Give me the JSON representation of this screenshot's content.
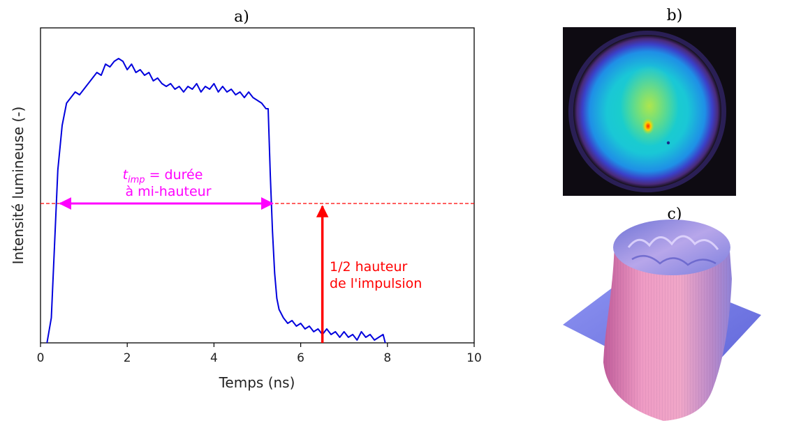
{
  "panels": {
    "a": "a)",
    "b": "b)",
    "c": "c)"
  },
  "chart_data": {
    "type": "line",
    "xlabel": "Temps (ns)",
    "ylabel": "Intensité lumineuse (-)",
    "xlim": [
      0,
      10
    ],
    "ylim": [
      0,
      1.13
    ],
    "xticks": [
      "0",
      "2",
      "4",
      "6",
      "8",
      "10"
    ],
    "yticks_shown": false,
    "grid": false,
    "series": [
      {
        "color": "#0000dd",
        "x": [
          0.15,
          0.25,
          0.32,
          0.4,
          0.5,
          0.6,
          0.7,
          0.8,
          0.9,
          1.0,
          1.1,
          1.2,
          1.3,
          1.4,
          1.5,
          1.6,
          1.7,
          1.8,
          1.9,
          2.0,
          2.1,
          2.2,
          2.3,
          2.4,
          2.5,
          2.6,
          2.7,
          2.8,
          2.9,
          3.0,
          3.1,
          3.2,
          3.3,
          3.4,
          3.5,
          3.6,
          3.7,
          3.8,
          3.9,
          4.0,
          4.1,
          4.2,
          4.3,
          4.4,
          4.5,
          4.6,
          4.7,
          4.8,
          4.9,
          5.0,
          5.1,
          5.2,
          5.25,
          5.3,
          5.35,
          5.4,
          5.45,
          5.5,
          5.6,
          5.7,
          5.8,
          5.9,
          6.0,
          6.1,
          6.2,
          6.3,
          6.4,
          6.5,
          6.6,
          6.7,
          6.8,
          6.9,
          7.0,
          7.1,
          7.2,
          7.3,
          7.4,
          7.5,
          7.6,
          7.7,
          7.8,
          7.9,
          7.95
        ],
        "y": [
          0.0,
          0.09,
          0.34,
          0.62,
          0.78,
          0.86,
          0.88,
          0.9,
          0.89,
          0.91,
          0.93,
          0.95,
          0.97,
          0.96,
          1.0,
          0.99,
          1.01,
          1.02,
          1.01,
          0.98,
          1.0,
          0.97,
          0.98,
          0.96,
          0.97,
          0.94,
          0.95,
          0.93,
          0.92,
          0.93,
          0.91,
          0.92,
          0.9,
          0.92,
          0.91,
          0.93,
          0.9,
          0.92,
          0.91,
          0.93,
          0.9,
          0.92,
          0.9,
          0.91,
          0.89,
          0.9,
          0.88,
          0.9,
          0.88,
          0.87,
          0.86,
          0.84,
          0.84,
          0.6,
          0.4,
          0.25,
          0.16,
          0.12,
          0.09,
          0.07,
          0.08,
          0.06,
          0.07,
          0.05,
          0.06,
          0.04,
          0.05,
          0.03,
          0.05,
          0.03,
          0.04,
          0.02,
          0.04,
          0.02,
          0.03,
          0.01,
          0.04,
          0.02,
          0.03,
          0.01,
          0.02,
          0.03,
          0.0
        ]
      }
    ],
    "half_height_line": {
      "y": 0.5,
      "color": "#ff0000",
      "style": "dashed"
    },
    "fwhm_arrow": {
      "x_start": 0.45,
      "x_end": 5.35,
      "y": 0.5,
      "color": "#ff00ff"
    },
    "half_arrow": {
      "x": 6.5,
      "y_start": 0.0,
      "y_end": 0.5,
      "color": "#ff0000"
    },
    "annotations": {
      "timp_symbol": "t",
      "timp_subscript": "imp",
      "timp_rest": " = durée",
      "timp_line2": "à mi-hauteur",
      "half_line1": "1/2 hauteur",
      "half_line2": "de l'impulsion"
    }
  },
  "images": {
    "beam_profile_2d": "beam-spot-heatmap",
    "beam_profile_3d": "beam-3d-surface"
  }
}
